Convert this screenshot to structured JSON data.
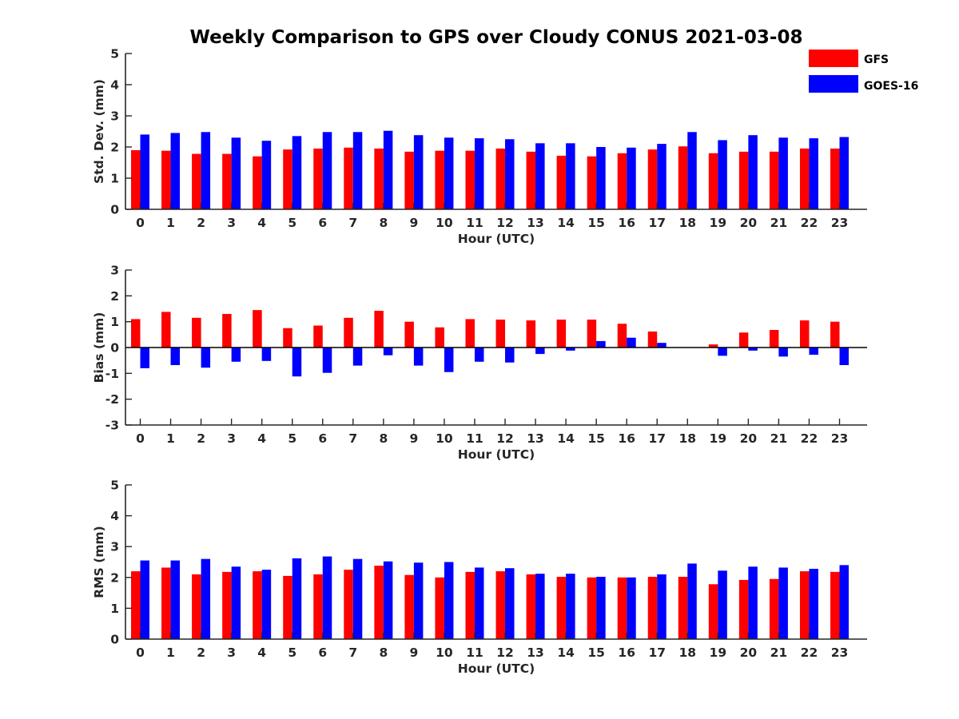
{
  "title": "Weekly Comparison to GPS over Cloudy CONUS 2021-03-08",
  "legend": [
    {
      "name": "GFS",
      "color": "#ff0000"
    },
    {
      "name": "GOES-16",
      "color": "#0000ff"
    }
  ],
  "chart_data": [
    {
      "type": "bar",
      "xlabel": "Hour (UTC)",
      "ylabel": "Std. Dev. (mm)",
      "ylim": [
        0,
        5
      ],
      "yticks": [
        0,
        1,
        2,
        3,
        4,
        5
      ],
      "categories": [
        0,
        1,
        2,
        3,
        4,
        5,
        6,
        7,
        8,
        9,
        10,
        11,
        12,
        13,
        14,
        15,
        16,
        17,
        18,
        19,
        20,
        21,
        22,
        23
      ],
      "legend_position": "top-right",
      "grid": false,
      "series": [
        {
          "name": "GFS",
          "color": "#ff0000",
          "values": [
            1.9,
            1.88,
            1.78,
            1.78,
            1.7,
            1.92,
            1.95,
            1.98,
            1.95,
            1.85,
            1.88,
            1.88,
            1.95,
            1.85,
            1.72,
            1.7,
            1.8,
            1.92,
            2.02,
            1.8,
            1.85,
            1.85,
            1.95,
            1.95
          ]
        },
        {
          "name": "GOES-16",
          "color": "#0000ff",
          "values": [
            2.4,
            2.45,
            2.48,
            2.3,
            2.2,
            2.35,
            2.48,
            2.48,
            2.52,
            2.38,
            2.3,
            2.28,
            2.25,
            2.12,
            2.12,
            2.0,
            1.98,
            2.1,
            2.48,
            2.22,
            2.38,
            2.3,
            2.28,
            2.32
          ]
        }
      ]
    },
    {
      "type": "bar",
      "xlabel": "Hour (UTC)",
      "ylabel": "Bias (mm)",
      "ylim": [
        -3,
        3
      ],
      "yticks": [
        -3,
        -2,
        -1,
        0,
        1,
        2,
        3
      ],
      "categories": [
        0,
        1,
        2,
        3,
        4,
        5,
        6,
        7,
        8,
        9,
        10,
        11,
        12,
        13,
        14,
        15,
        16,
        17,
        18,
        19,
        20,
        21,
        22,
        23
      ],
      "grid": false,
      "series": [
        {
          "name": "GFS",
          "color": "#ff0000",
          "values": [
            1.1,
            1.38,
            1.15,
            1.3,
            1.45,
            0.75,
            0.85,
            1.15,
            1.42,
            1.0,
            0.78,
            1.1,
            1.08,
            1.05,
            1.08,
            1.08,
            0.92,
            0.62,
            0.0,
            0.12,
            0.58,
            0.68,
            1.05,
            1.0
          ]
        },
        {
          "name": "GOES-16",
          "color": "#0000ff",
          "values": [
            -0.8,
            -0.68,
            -0.78,
            -0.55,
            -0.52,
            -1.12,
            -0.98,
            -0.7,
            -0.3,
            -0.7,
            -0.95,
            -0.55,
            -0.58,
            -0.25,
            -0.12,
            0.25,
            0.38,
            0.18,
            0.0,
            -0.32,
            -0.12,
            -0.35,
            -0.28,
            -0.68
          ]
        }
      ]
    },
    {
      "type": "bar",
      "xlabel": "Hour (UTC)",
      "ylabel": "RMS (mm)",
      "ylim": [
        0,
        5
      ],
      "yticks": [
        0,
        1,
        2,
        3,
        4,
        5
      ],
      "categories": [
        0,
        1,
        2,
        3,
        4,
        5,
        6,
        7,
        8,
        9,
        10,
        11,
        12,
        13,
        14,
        15,
        16,
        17,
        18,
        19,
        20,
        21,
        22,
        23
      ],
      "grid": false,
      "series": [
        {
          "name": "GFS",
          "color": "#ff0000",
          "values": [
            2.2,
            2.32,
            2.1,
            2.18,
            2.2,
            2.05,
            2.1,
            2.25,
            2.38,
            2.08,
            2.0,
            2.18,
            2.2,
            2.1,
            2.02,
            2.0,
            2.0,
            2.02,
            2.02,
            1.78,
            1.92,
            1.95,
            2.2,
            2.18
          ]
        },
        {
          "name": "GOES-16",
          "color": "#0000ff",
          "values": [
            2.55,
            2.55,
            2.6,
            2.35,
            2.25,
            2.62,
            2.68,
            2.6,
            2.52,
            2.48,
            2.5,
            2.32,
            2.3,
            2.12,
            2.12,
            2.02,
            2.0,
            2.1,
            2.45,
            2.22,
            2.35,
            2.32,
            2.28,
            2.4
          ]
        }
      ]
    }
  ]
}
